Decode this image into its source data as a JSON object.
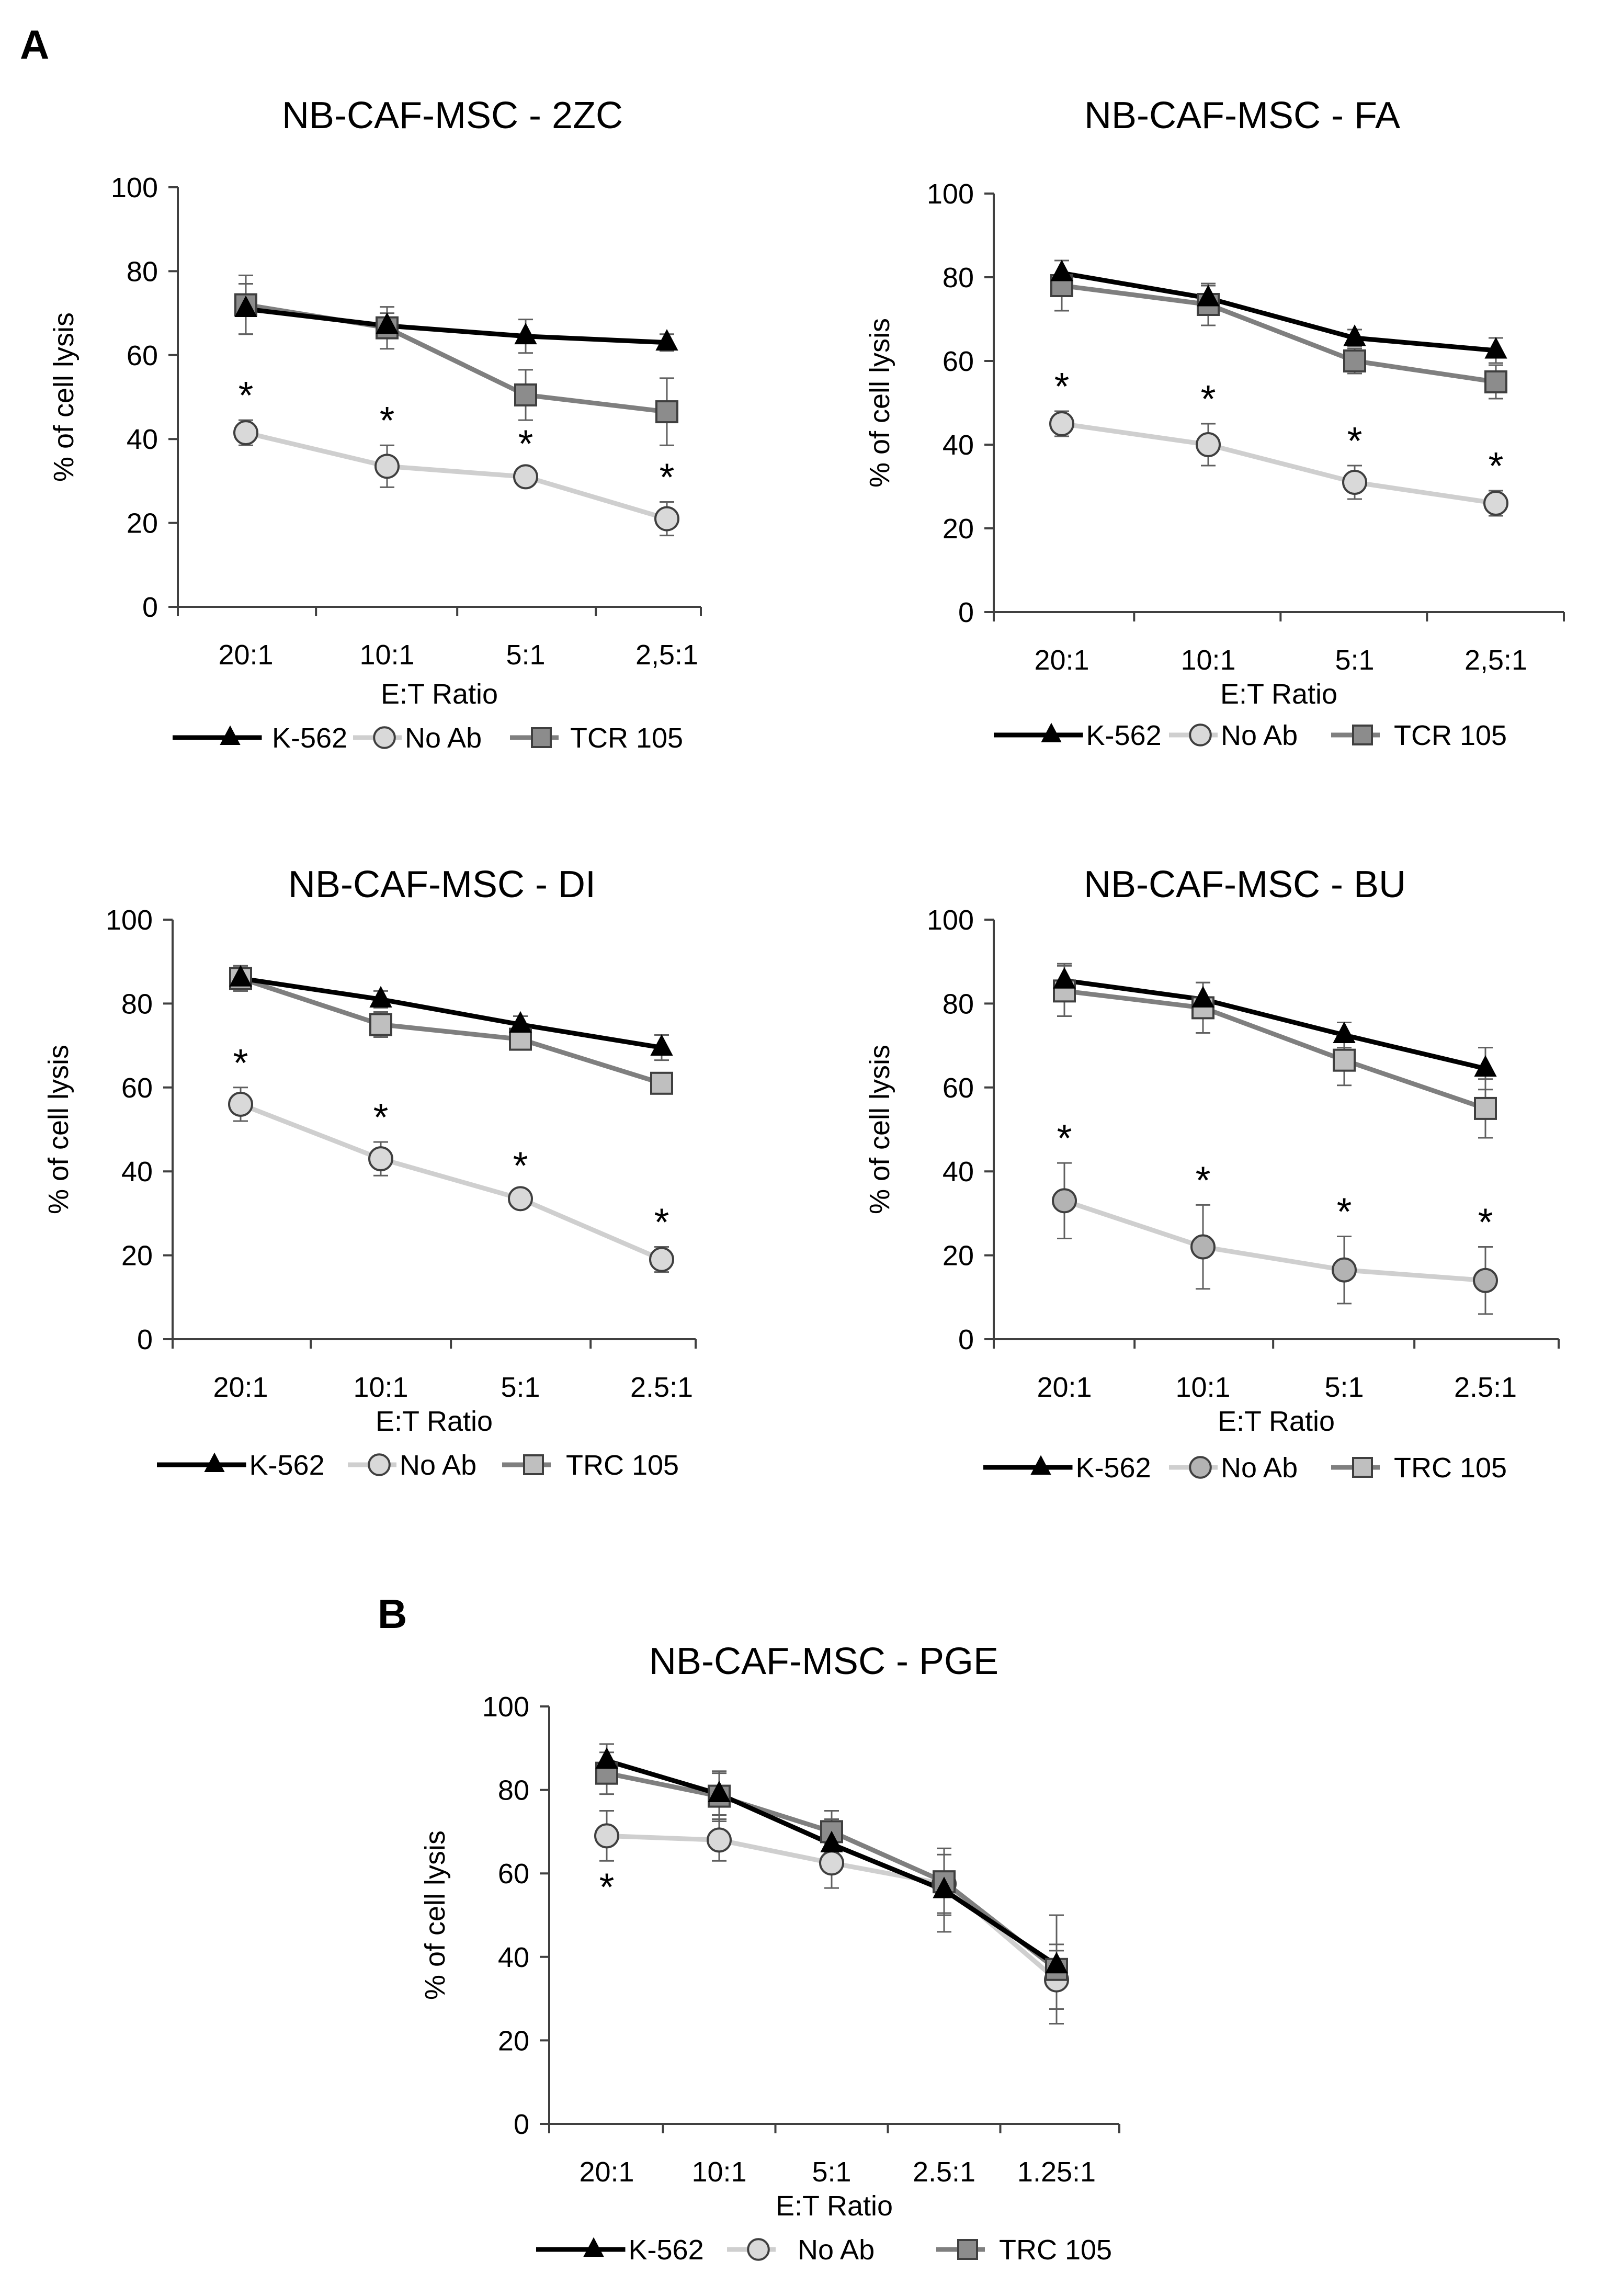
{
  "panel_labels": [
    "A",
    "B"
  ],
  "colors": {
    "K-562": "#000000",
    "No Ab line": "#cfcfcf",
    "No Ab marker": "#d9d9d9",
    "No Ab marker dark": "#b3b3b3",
    "TCR 105 line": "#7f7f7f",
    "TCR 105 marker": "#8c8c8c",
    "TCR 105 marker light": "#bfbfbf",
    "axis": "#404040"
  },
  "chart_data": [
    {
      "type": "line",
      "title": "NB-CAF-MSC - 2ZC",
      "xlabel": "E:T Ratio",
      "ylabel": "% of cell lysis",
      "ylim": [
        0,
        100
      ],
      "yticks": [
        "0",
        "20",
        "40",
        "60",
        "80",
        "100"
      ],
      "categories": [
        "20:1",
        "10:1",
        "5:1",
        "2,5:1"
      ],
      "legend_position": "bottom",
      "series": [
        {
          "name": "K-562",
          "marker": "triangle",
          "values": [
            71,
            67,
            64.5,
            63
          ],
          "errors": [
            6,
            3,
            4,
            2
          ]
        },
        {
          "name": "No Ab",
          "marker": "circle",
          "values": [
            41.5,
            33.5,
            31,
            21
          ],
          "errors": [
            3,
            5,
            2,
            4
          ]
        },
        {
          "name": "TCR 105",
          "marker": "square",
          "values": [
            72,
            66.5,
            50.5,
            46.5
          ],
          "errors": [
            7,
            5,
            6,
            8
          ]
        }
      ],
      "significance": [
        "*",
        "*",
        "*",
        "*"
      ]
    },
    {
      "type": "line",
      "title": "NB-CAF-MSC - FA",
      "xlabel": "E:T Ratio",
      "ylabel": "% of cell lysis",
      "ylim": [
        0,
        100
      ],
      "yticks": [
        "0",
        "20",
        "40",
        "60",
        "80",
        "100"
      ],
      "categories": [
        "20:1",
        "10:1",
        "5:1",
        "2,5:1"
      ],
      "legend_position": "bottom",
      "series": [
        {
          "name": "K-562",
          "marker": "triangle",
          "values": [
            81,
            75,
            65.5,
            62.5
          ],
          "errors": [
            3,
            3,
            2,
            3
          ]
        },
        {
          "name": "No Ab",
          "marker": "circle",
          "values": [
            45,
            40,
            31,
            26
          ],
          "errors": [
            3,
            5,
            4,
            3
          ]
        },
        {
          "name": "TCR 105",
          "marker": "square",
          "values": [
            78,
            73.5,
            60,
            55
          ],
          "errors": [
            6,
            5,
            3,
            4
          ]
        }
      ],
      "significance": [
        "*",
        "*",
        "*",
        "*"
      ]
    },
    {
      "type": "line",
      "title": "NB-CAF-MSC - DI",
      "xlabel": "E:T Ratio",
      "ylabel": "% of cell lysis",
      "ylim": [
        0,
        100
      ],
      "yticks": [
        "0",
        "20",
        "40",
        "60",
        "80",
        "100"
      ],
      "categories": [
        "20:1",
        "10:1",
        "5:1",
        "2.5:1"
      ],
      "legend_position": "bottom",
      "series": [
        {
          "name": "K-562",
          "marker": "triangle",
          "values": [
            86,
            81,
            75,
            69.5
          ],
          "errors": [
            3,
            2,
            2,
            3
          ]
        },
        {
          "name": "No Ab",
          "marker": "circle",
          "values": [
            56,
            43,
            33.5,
            19
          ],
          "errors": [
            4,
            4,
            2,
            3
          ]
        },
        {
          "name": "TRC 105",
          "marker": "square",
          "values": [
            86,
            75,
            71.5,
            61
          ],
          "errors": [
            3,
            3,
            2,
            1
          ]
        }
      ],
      "significance": [
        "*",
        "*",
        "*",
        "*"
      ]
    },
    {
      "type": "line",
      "title": "NB-CAF-MSC - BU",
      "xlabel": "E:T Ratio",
      "ylabel": "% of cell lysis",
      "ylim": [
        0,
        100
      ],
      "yticks": [
        "0",
        "20",
        "40",
        "60",
        "80",
        "100"
      ],
      "categories": [
        "20:1",
        "10:1",
        "5:1",
        "2.5:1"
      ],
      "legend_position": "bottom",
      "series": [
        {
          "name": "K-562",
          "marker": "triangle",
          "values": [
            85.5,
            81,
            72.5,
            64.5
          ],
          "errors": [
            4,
            4,
            3,
            5
          ]
        },
        {
          "name": "No Ab",
          "marker": "circle",
          "values": [
            33,
            22,
            16.5,
            14
          ],
          "errors": [
            9,
            10,
            8,
            8
          ]
        },
        {
          "name": "TRC 105",
          "marker": "square",
          "values": [
            83,
            79,
            66.5,
            55
          ],
          "errors": [
            6,
            6,
            6,
            7
          ]
        }
      ],
      "significance": [
        "*",
        "*",
        "*",
        "*"
      ]
    },
    {
      "type": "line",
      "title": "NB-CAF-MSC - PGE",
      "xlabel": "E:T Ratio",
      "ylabel": "% of cell lysis",
      "ylim": [
        0,
        100
      ],
      "yticks": [
        "0",
        "20",
        "40",
        "60",
        "80",
        "100"
      ],
      "categories": [
        "20:1",
        "10:1",
        "5:1",
        "2.5:1",
        "1.25:1"
      ],
      "legend_position": "bottom",
      "series": [
        {
          "name": "K-562",
          "marker": "triangle",
          "values": [
            87,
            79,
            67,
            56,
            38
          ],
          "errors": [
            4,
            5,
            6,
            10,
            5
          ]
        },
        {
          "name": "No Ab",
          "marker": "circle",
          "values": [
            69,
            68,
            62.5,
            57.5,
            34.5
          ],
          "errors": [
            6,
            5,
            6,
            7,
            7
          ]
        },
        {
          "name": "TRC 105",
          "marker": "square",
          "values": [
            84,
            78.5,
            70,
            58,
            37
          ],
          "errors": [
            5,
            6,
            5,
            8,
            13
          ]
        }
      ],
      "significance": [
        "*",
        "",
        "",
        "",
        ""
      ]
    }
  ]
}
